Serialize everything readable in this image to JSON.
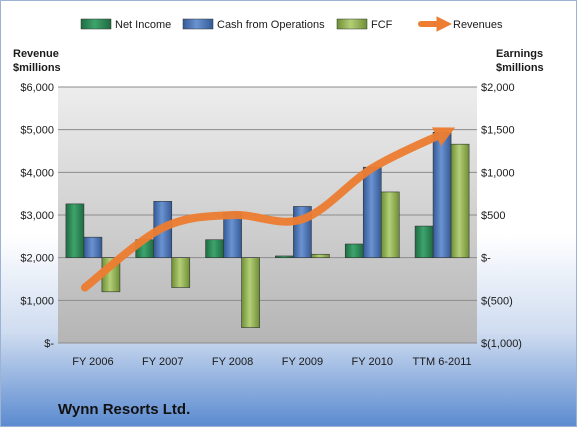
{
  "chart_data": {
    "type": "bar",
    "company": "Wynn Resorts Ltd.",
    "categories": [
      "FY 2006",
      "FY 2007",
      "FY 2008",
      "FY 2009",
      "FY 2010",
      "TTM 6-2011"
    ],
    "left_axis": {
      "title_line1": "Revenue",
      "title_line2": "$millions",
      "range": [
        0,
        6000
      ],
      "ticks": [
        {
          "v": 6000,
          "label": "$6,000"
        },
        {
          "v": 5000,
          "label": "$5,000"
        },
        {
          "v": 4000,
          "label": "$4,000"
        },
        {
          "v": 3000,
          "label": "$3,000"
        },
        {
          "v": 2000,
          "label": "$2,000"
        },
        {
          "v": 1000,
          "label": "$1,000"
        },
        {
          "v": 0,
          "label": "$-"
        }
      ]
    },
    "right_axis": {
      "title_line1": "Earnings",
      "title_line2": "$millions",
      "range": [
        -1000,
        2000
      ],
      "ticks": [
        {
          "v": 2000,
          "label": "$2,000"
        },
        {
          "v": 1500,
          "label": "$1,500"
        },
        {
          "v": 1000,
          "label": "$1,000"
        },
        {
          "v": 500,
          "label": "$500"
        },
        {
          "v": 0,
          "label": "$-"
        },
        {
          "v": -500,
          "label": "$(500)"
        },
        {
          "v": -1000,
          "label": "$(1,000)"
        }
      ]
    },
    "series": [
      {
        "name": "Net Income",
        "kind": "bar",
        "axis": "right",
        "color": "#2e8b57",
        "values": [
          630,
          210,
          210,
          20,
          160,
          370
        ]
      },
      {
        "name": "Cash from Operations",
        "kind": "bar",
        "axis": "right",
        "color": "#4f78b8",
        "values": [
          240,
          660,
          530,
          600,
          1060,
          1470
        ]
      },
      {
        "name": "FCF",
        "kind": "bar",
        "axis": "right",
        "color": "#9bbb59",
        "values": [
          -400,
          -350,
          -820,
          40,
          770,
          1330
        ]
      },
      {
        "name": "Revenues",
        "kind": "line",
        "axis": "left",
        "color": "#ed7d31",
        "values": [
          1300,
          2700,
          3000,
          2900,
          4100,
          4900
        ]
      }
    ],
    "grid": true,
    "legend_position": "top"
  }
}
